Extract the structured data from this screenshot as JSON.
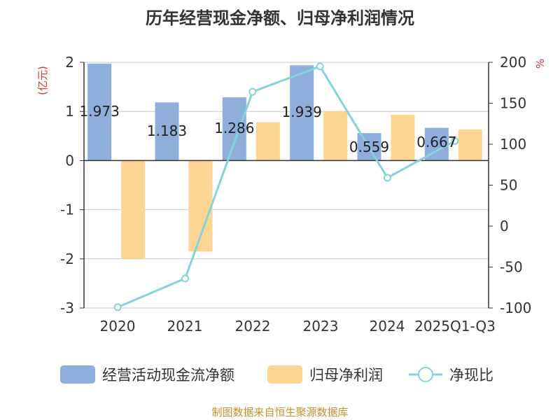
{
  "chart_data": {
    "type": "bar",
    "title": "历年经营现金净额、归母净利润情况",
    "categories": [
      "2020",
      "2021",
      "2022",
      "2023",
      "2024",
      "2025Q1-Q3"
    ],
    "ylabel_left": "(亿元)",
    "ylabel_right": "%",
    "ylim_left": [
      -3,
      2
    ],
    "yticks_left": [
      2,
      1,
      0,
      -1,
      -2,
      -3
    ],
    "ylim_right": [
      -100,
      200
    ],
    "yticks_right": [
      200,
      150,
      100,
      50,
      0,
      -50,
      -100
    ],
    "series": [
      {
        "name": "经营活动现金流净额",
        "kind": "bar",
        "axis": "left",
        "color": "#8eaedb",
        "values": [
          1.973,
          1.183,
          1.286,
          1.939,
          0.559,
          0.667
        ],
        "labels": [
          "1.973",
          "1.183",
          "1.286",
          "1.939",
          "0.559",
          "0.667"
        ]
      },
      {
        "name": "归母净利润",
        "kind": "bar",
        "axis": "left",
        "color": "#fdd592",
        "values": [
          -2.0,
          -1.85,
          0.78,
          1.0,
          0.93,
          0.63
        ]
      },
      {
        "name": "净现比",
        "kind": "line",
        "axis": "right",
        "color": "#83d3d8",
        "values": [
          -99,
          -64,
          164,
          195,
          59,
          104
        ]
      }
    ]
  },
  "source": "制图数据来自恒生聚源数据库"
}
